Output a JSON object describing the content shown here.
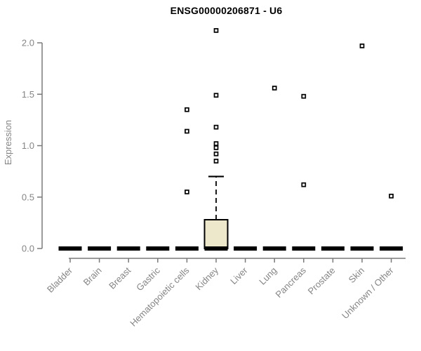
{
  "title": "ENSG00000206871 - U6",
  "chart_data": {
    "type": "boxplot",
    "title": "ENSG00000206871 - U6",
    "xlabel": "",
    "ylabel": "Expression",
    "ylim": [
      0.0,
      2.0
    ],
    "yticks": [
      0.0,
      0.5,
      1.0,
      1.5,
      2.0
    ],
    "grid": false,
    "legend": "none",
    "categories": [
      "Bladder",
      "Brain",
      "Breast",
      "Gastric",
      "Hematopoietic cells",
      "Kidney",
      "Liver",
      "Lung",
      "Pancreas",
      "Prostate",
      "Skin",
      "Unknown / Other"
    ],
    "series": [
      {
        "category": "Bladder",
        "whisker_low": 0,
        "q1": 0,
        "median": 0,
        "q3": 0,
        "whisker_high": 0,
        "outliers": []
      },
      {
        "category": "Brain",
        "whisker_low": 0,
        "q1": 0,
        "median": 0,
        "q3": 0,
        "whisker_high": 0,
        "outliers": []
      },
      {
        "category": "Breast",
        "whisker_low": 0,
        "q1": 0,
        "median": 0,
        "q3": 0,
        "whisker_high": 0,
        "outliers": []
      },
      {
        "category": "Gastric",
        "whisker_low": 0,
        "q1": 0,
        "median": 0,
        "q3": 0,
        "whisker_high": 0,
        "outliers": []
      },
      {
        "category": "Hematopoietic cells",
        "whisker_low": 0,
        "q1": 0,
        "median": 0,
        "q3": 0,
        "whisker_high": 0,
        "outliers": [
          0.55,
          1.14,
          1.35
        ]
      },
      {
        "category": "Kidney",
        "whisker_low": 0,
        "q1": 0,
        "median": 0,
        "q3": 0.28,
        "whisker_high": 0.7,
        "outliers": [
          0.85,
          0.92,
          0.98,
          1.02,
          1.18,
          1.49,
          2.12
        ]
      },
      {
        "category": "Liver",
        "whisker_low": 0,
        "q1": 0,
        "median": 0,
        "q3": 0,
        "whisker_high": 0,
        "outliers": []
      },
      {
        "category": "Lung",
        "whisker_low": 0,
        "q1": 0,
        "median": 0,
        "q3": 0,
        "whisker_high": 0,
        "outliers": [
          1.56
        ]
      },
      {
        "category": "Pancreas",
        "whisker_low": 0,
        "q1": 0,
        "median": 0,
        "q3": 0,
        "whisker_high": 0,
        "outliers": [
          0.62,
          1.48
        ]
      },
      {
        "category": "Prostate",
        "whisker_low": 0,
        "q1": 0,
        "median": 0,
        "q3": 0,
        "whisker_high": 0,
        "outliers": []
      },
      {
        "category": "Skin",
        "whisker_low": 0,
        "q1": 0,
        "median": 0,
        "q3": 0,
        "whisker_high": 0,
        "outliers": [
          1.97
        ]
      },
      {
        "category": "Unknown / Other",
        "whisker_low": 0,
        "q1": 0,
        "median": 0,
        "q3": 0,
        "whisker_high": 0,
        "outliers": [
          0.51
        ]
      }
    ],
    "colors": {
      "box_fill": "#EDE8CB",
      "box_stroke": "#000000",
      "median": "#000000",
      "outlier": "#000000",
      "axis_line": "#7a7a7a",
      "axis_text": "#858585",
      "title": "#000000",
      "background": "#ffffff"
    }
  }
}
